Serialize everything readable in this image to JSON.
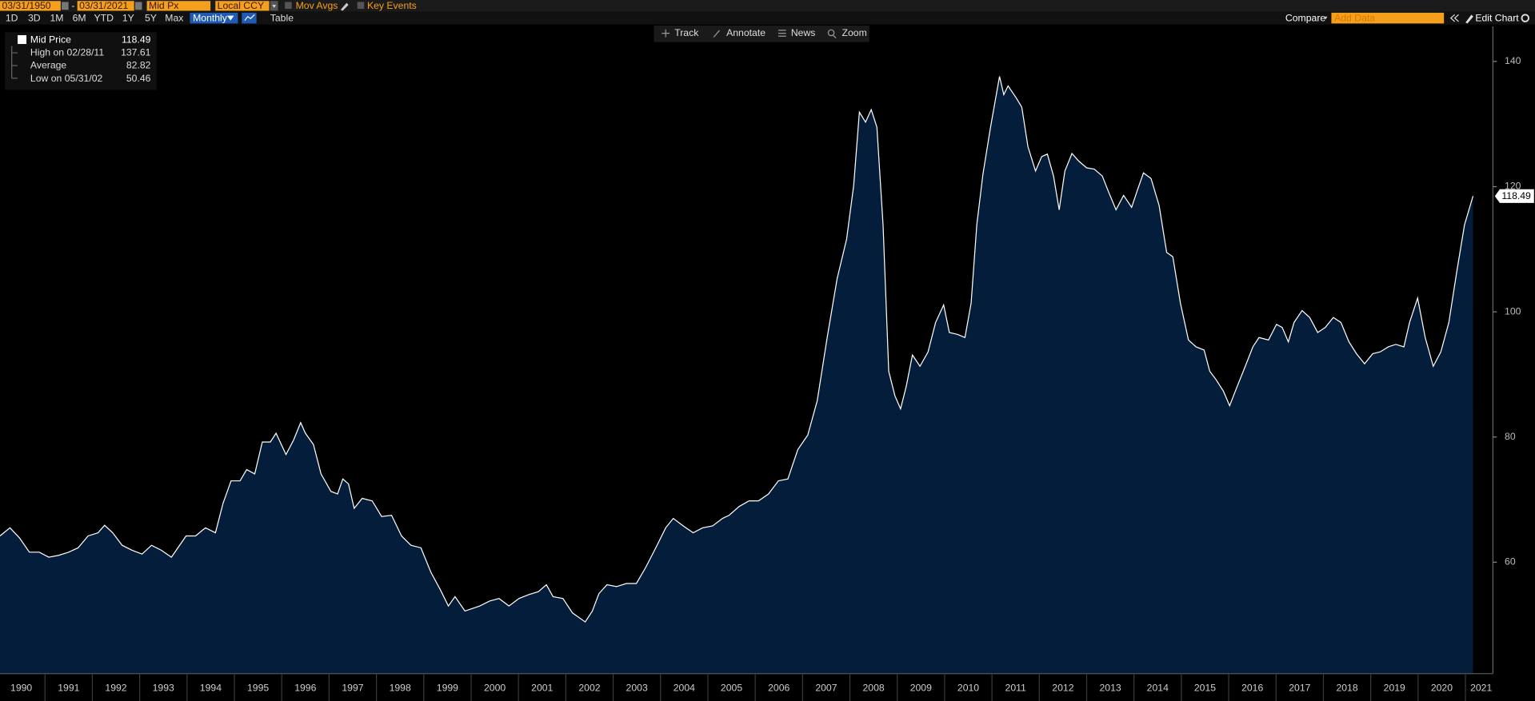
{
  "toolbar": {
    "start_date": "03/31/1950",
    "separator": "-",
    "end_date": "03/31/2021",
    "field": "Mid Px",
    "currency": "Local CCY",
    "mov_avgs": "Mov Avgs",
    "key_events": "Key Events"
  },
  "periods": [
    "1D",
    "3D",
    "1M",
    "6M",
    "YTD",
    "1Y",
    "5Y",
    "Max"
  ],
  "frequency": "Monthly",
  "table": "Table",
  "compare": "Compare",
  "add_data": "Add Data",
  "edit_chart": "Edit Chart",
  "tools": [
    "Track",
    "Annotate",
    "News",
    "Zoom"
  ],
  "legend_stats": [
    {
      "label": "High on 02/28/11",
      "value": 137.61
    },
    {
      "label": "Average",
      "value": 82.82
    },
    {
      "label": "Low on 05/31/02",
      "value": 50.46
    }
  ],
  "chart_data": {
    "type": "area",
    "x": [
      1990.05,
      1990.26,
      1990.46,
      1990.67,
      1990.88,
      1991.08,
      1991.29,
      1991.5,
      1991.7,
      1991.91,
      1992.12,
      1992.26,
      1992.43,
      1992.63,
      1992.84,
      1993.05,
      1993.25,
      1993.46,
      1993.67,
      1993.98,
      1994.18,
      1994.39,
      1994.6,
      1994.76,
      1994.93,
      1995.12,
      1995.26,
      1995.43,
      1995.59,
      1995.76,
      1995.88,
      1996.09,
      1996.25,
      1996.4,
      1996.5,
      1996.67,
      1996.83,
      1997.04,
      1997.18,
      1997.29,
      1997.41,
      1997.53,
      1997.7,
      1997.91,
      1998.11,
      1998.32,
      1998.53,
      1998.73,
      1998.94,
      1999.15,
      1999.35,
      1999.52,
      1999.66,
      1999.87,
      2000.18,
      2000.39,
      2000.59,
      2000.8,
      2001.01,
      2001.21,
      2001.42,
      2001.59,
      2001.73,
      2001.94,
      2002.14,
      2002.41,
      2002.56,
      2002.7,
      2002.87,
      2003.07,
      2003.28,
      2003.49,
      2003.69,
      2003.9,
      2004.11,
      2004.27,
      2004.48,
      2004.69,
      2004.89,
      2005.1,
      2005.31,
      2005.45,
      2005.66,
      2005.87,
      2006.07,
      2006.28,
      2006.49,
      2006.69,
      2006.9,
      2007.11,
      2007.31,
      2007.52,
      2007.73,
      2007.93,
      2008.08,
      2008.2,
      2008.33,
      2008.45,
      2008.57,
      2008.7,
      2008.82,
      2008.95,
      2009.07,
      2009.19,
      2009.32,
      2009.48,
      2009.65,
      2009.81,
      2009.98,
      2010.1,
      2010.27,
      2010.43,
      2010.56,
      2010.68,
      2010.81,
      2010.97,
      2011.16,
      2011.25,
      2011.34,
      2011.51,
      2011.63,
      2011.76,
      2011.92,
      2012.05,
      2012.17,
      2012.3,
      2012.42,
      2012.54,
      2012.69,
      2012.83,
      2013.0,
      2013.16,
      2013.33,
      2013.45,
      2013.62,
      2013.78,
      2013.95,
      2014.07,
      2014.2,
      2014.36,
      2014.53,
      2014.69,
      2014.82,
      2014.98,
      2015.15,
      2015.31,
      2015.48,
      2015.6,
      2015.73,
      2015.89,
      2016.02,
      2016.18,
      2016.35,
      2016.51,
      2016.64,
      2016.84,
      2017.01,
      2017.13,
      2017.26,
      2017.38,
      2017.55,
      2017.71,
      2017.88,
      2018.04,
      2018.21,
      2018.37,
      2018.54,
      2018.7,
      2018.87,
      2019.04,
      2019.2,
      2019.37,
      2019.53,
      2019.7,
      2019.82,
      2019.99,
      2020.15,
      2020.32,
      2020.48,
      2020.65,
      2020.81,
      2020.98,
      2021.16
    ],
    "series": [
      {
        "name": "Mid Price",
        "color": "#ffffff",
        "fill": "#031d3b",
        "values": [
          64.2,
          65.5,
          63.9,
          61.6,
          61.6,
          60.8,
          61.1,
          61.6,
          62.3,
          64.2,
          64.7,
          65.9,
          64.7,
          62.7,
          61.9,
          61.3,
          62.7,
          61.9,
          60.8,
          64.2,
          64.2,
          65.5,
          64.7,
          69.4,
          73.0,
          73.0,
          74.8,
          74.1,
          79.2,
          79.2,
          80.6,
          77.2,
          79.5,
          82.3,
          80.6,
          78.8,
          74.1,
          71.3,
          70.9,
          73.3,
          72.5,
          68.6,
          70.2,
          69.8,
          67.3,
          67.5,
          64.2,
          62.7,
          62.3,
          58.4,
          55.6,
          53.0,
          54.5,
          52.2,
          53.0,
          53.8,
          54.2,
          53.0,
          54.2,
          54.8,
          55.3,
          56.4,
          54.5,
          54.2,
          51.9,
          50.46,
          52.2,
          55.0,
          56.4,
          56.1,
          56.6,
          56.6,
          59.2,
          62.3,
          65.5,
          67.0,
          65.8,
          64.7,
          65.5,
          65.8,
          67.0,
          67.5,
          68.9,
          69.8,
          69.8,
          70.9,
          73.0,
          73.3,
          78.0,
          80.3,
          85.8,
          95.9,
          105.3,
          111.6,
          120.2,
          131.9,
          130.3,
          132.3,
          129.5,
          113.9,
          90.5,
          86.6,
          84.5,
          88.1,
          93.1,
          91.3,
          93.6,
          98.3,
          101.1,
          96.7,
          96.4,
          95.9,
          101.4,
          113.9,
          122.0,
          129.5,
          137.61,
          134.7,
          136.1,
          134.2,
          132.7,
          126.4,
          122.5,
          124.8,
          125.2,
          121.7,
          116.3,
          122.5,
          125.3,
          124.1,
          123.0,
          122.8,
          121.7,
          119.4,
          116.3,
          118.6,
          116.7,
          119.4,
          122.2,
          121.3,
          117.0,
          109.5,
          108.8,
          101.4,
          95.5,
          94.4,
          93.9,
          90.5,
          89.2,
          87.3,
          85.0,
          88.1,
          91.3,
          94.4,
          95.9,
          95.5,
          98.0,
          97.5,
          95.2,
          98.3,
          100.2,
          99.1,
          96.7,
          97.5,
          99.1,
          98.3,
          95.2,
          93.3,
          91.7,
          93.3,
          93.6,
          94.4,
          94.8,
          94.4,
          98.3,
          102.2,
          95.9,
          91.3,
          93.6,
          98.3,
          106.1,
          113.9,
          118.49
        ]
      }
    ],
    "xlim": [
      1990.05,
      2021.58
    ],
    "xticks": [
      1990,
      1991,
      1992,
      1993,
      1994,
      1995,
      1996,
      1997,
      1998,
      1999,
      2000,
      2001,
      2002,
      2003,
      2004,
      2005,
      2006,
      2007,
      2008,
      2009,
      2010,
      2011,
      2012,
      2013,
      2014,
      2015,
      2016,
      2017,
      2018,
      2019,
      2020,
      2021
    ],
    "ylim": [
      42.2,
      145.6
    ],
    "yticks": [
      60,
      80,
      100,
      120,
      140
    ],
    "grid": false
  }
}
